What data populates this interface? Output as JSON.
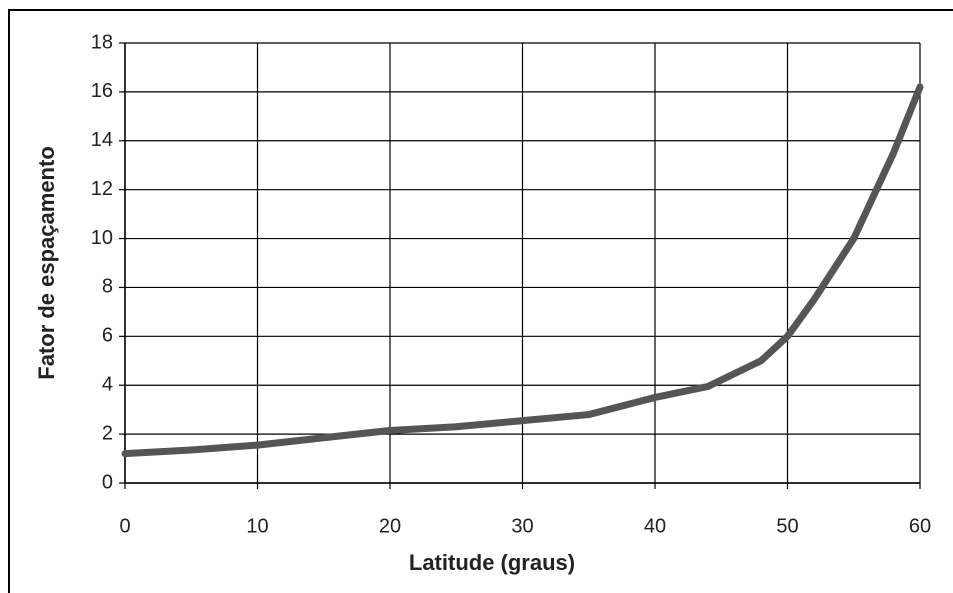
{
  "chart_data": {
    "type": "line",
    "xlabel": "Latitude (graus)",
    "ylabel": "Fator de espaçamento",
    "x": [
      0,
      5,
      10,
      15,
      20,
      25,
      30,
      35,
      40,
      44,
      48,
      50,
      52,
      55,
      58,
      60
    ],
    "series": [
      {
        "color": "#555555",
        "values": [
          1.2,
          1.35,
          1.55,
          1.85,
          2.15,
          2.3,
          2.55,
          2.8,
          3.5,
          3.95,
          5.0,
          6.0,
          7.5,
          10.0,
          13.5,
          16.2
        ]
      }
    ],
    "xlim": [
      0,
      60
    ],
    "xticks": [
      0,
      10,
      20,
      30,
      40,
      50,
      60
    ],
    "ylim": [
      0,
      18
    ],
    "yticks": [
      0,
      2,
      4,
      6,
      8,
      10,
      12,
      14,
      16,
      18
    ],
    "grid": true
  }
}
